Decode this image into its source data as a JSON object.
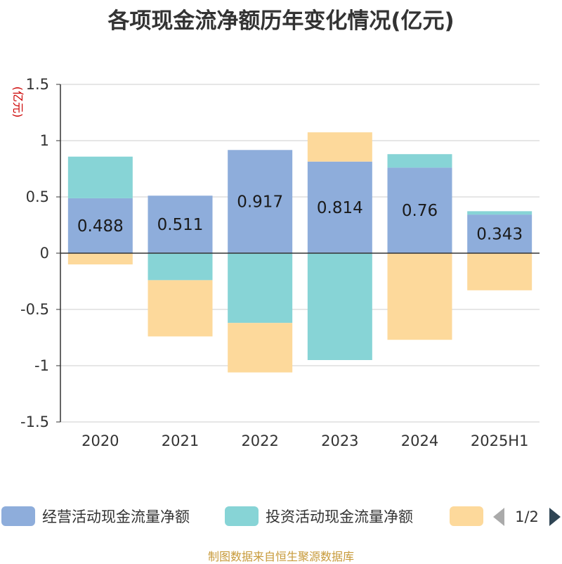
{
  "chart_data": {
    "type": "bar",
    "stacked": true,
    "title": "各项现金流净额历年变化情况(亿元)",
    "ylabel": "(亿元)",
    "ylim": [
      -1.5,
      1.5
    ],
    "yticks": [
      -1.5,
      -1,
      -0.5,
      0,
      0.5,
      1,
      1.5
    ],
    "ytick_labels": [
      "-1.5",
      "-1",
      "-0.5",
      "0",
      "0.5",
      "1",
      "1.5"
    ],
    "categories": [
      "2020",
      "2021",
      "2022",
      "2023",
      "2024",
      "2025H1"
    ],
    "series": [
      {
        "name": "经营活动现金流量净额",
        "color": "#8eaddb",
        "values": [
          0.488,
          0.511,
          0.917,
          0.814,
          0.76,
          0.343
        ],
        "labels": [
          "0.488",
          "0.511",
          "0.917",
          "0.814",
          "0.76",
          "0.343"
        ]
      },
      {
        "name": "投资活动现金流量净额",
        "color": "#87d4d6",
        "values": [
          0.37,
          -0.24,
          -0.62,
          -0.95,
          0.12,
          0.03
        ]
      },
      {
        "name": "",
        "color": "#fdd99b",
        "values": [
          -0.1,
          -0.5,
          -0.44,
          0.26,
          -0.77,
          -0.33
        ]
      }
    ],
    "grid": true,
    "legend_position": "bottom"
  },
  "legend": {
    "page_label": "1/2",
    "prev_icon": "triangle-left-icon",
    "next_icon": "triangle-right-icon"
  },
  "source": "制图数据来自恒生聚源数据库"
}
